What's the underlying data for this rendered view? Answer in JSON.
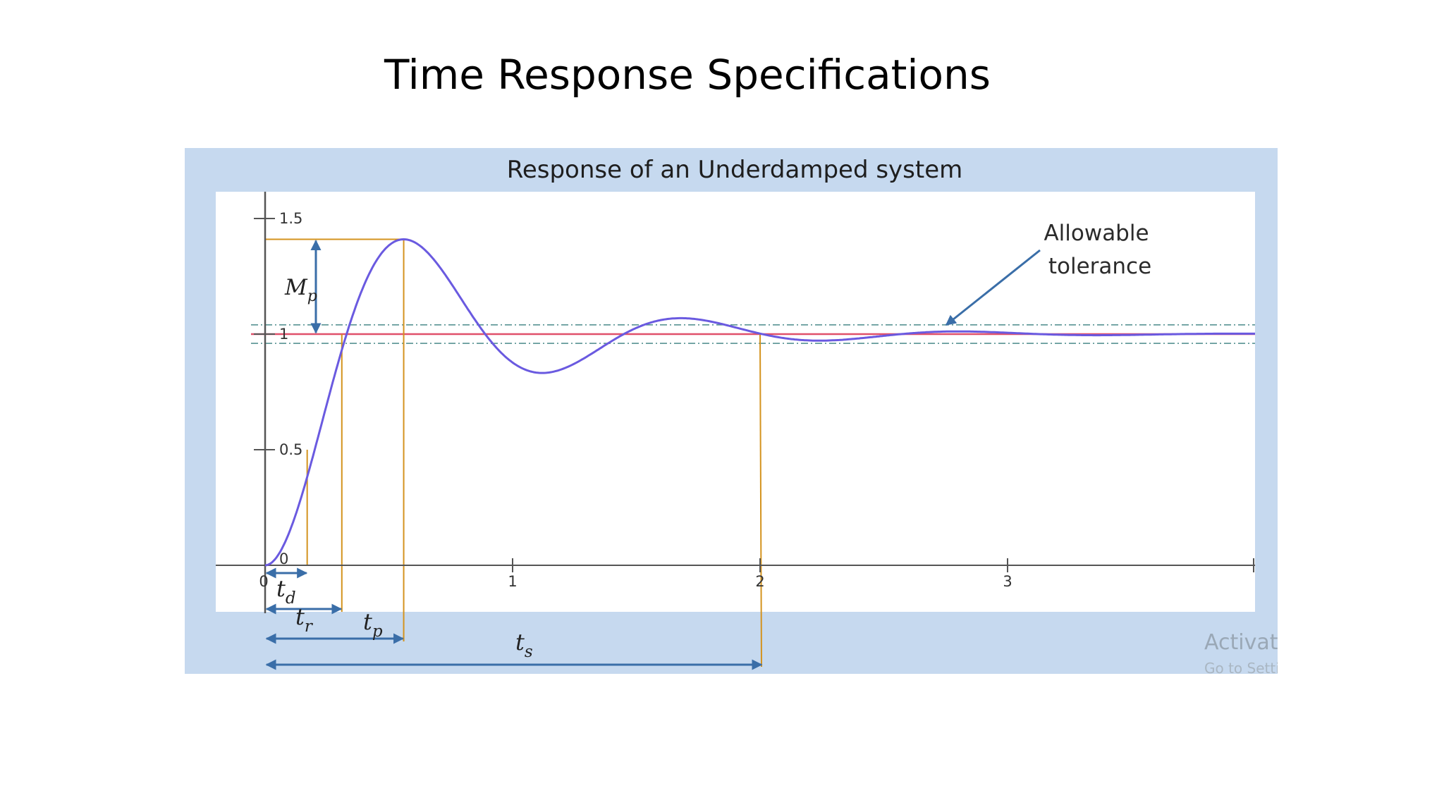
{
  "slide": {
    "title": "Time Response Specifications"
  },
  "chart_data": {
    "type": "line",
    "title": "Response of an Underdamped system",
    "x_ticks": [
      "0",
      "1",
      "2",
      "3"
    ],
    "y_ticks": [
      "0",
      "0.5",
      "1",
      "1.5"
    ],
    "xlim": [
      0,
      4
    ],
    "ylim": [
      0,
      1.5
    ],
    "grid": false,
    "series": [
      {
        "name": "",
        "kind": "underdamped second-order step response",
        "peak": {
          "x": 0.56,
          "y": 1.41
        },
        "undershoot": {
          "x": 1.19,
          "y": 0.85
        },
        "second_peak": {
          "x": 1.82,
          "y": 1.06
        },
        "final_value": 1.0,
        "color": "#6a5ae0"
      }
    ],
    "reference_line": {
      "y": 1.0,
      "color": "#e0506a"
    },
    "tolerance_band": {
      "upper": 1.04,
      "lower": 0.96,
      "color": "#4a8a8a"
    },
    "markers": {
      "td": {
        "x": 0.17,
        "y": 0.5
      },
      "tr": {
        "x": 0.31,
        "y": 1.0
      },
      "tp": {
        "x": 0.56,
        "y": 1.41
      },
      "ts": {
        "x": 2.0,
        "y": 1.04
      }
    },
    "symbols": {
      "Mp": {
        "base": "M",
        "sub": "p"
      },
      "td": {
        "base": "t",
        "sub": "d"
      },
      "tr": {
        "base": "t",
        "sub": "r"
      },
      "tp": {
        "base": "t",
        "sub": "p"
      },
      "ts": {
        "base": "t",
        "sub": "s"
      }
    },
    "annotation": {
      "line1": "Allowable",
      "line2": "tolerance"
    }
  },
  "watermark": {
    "line1": "Activate",
    "line2": "Go to Settings"
  },
  "colors": {
    "frame": "#c6d9ef",
    "guide": "#d4931e",
    "arrow": "#3a6ea8",
    "axis": "#555555"
  }
}
